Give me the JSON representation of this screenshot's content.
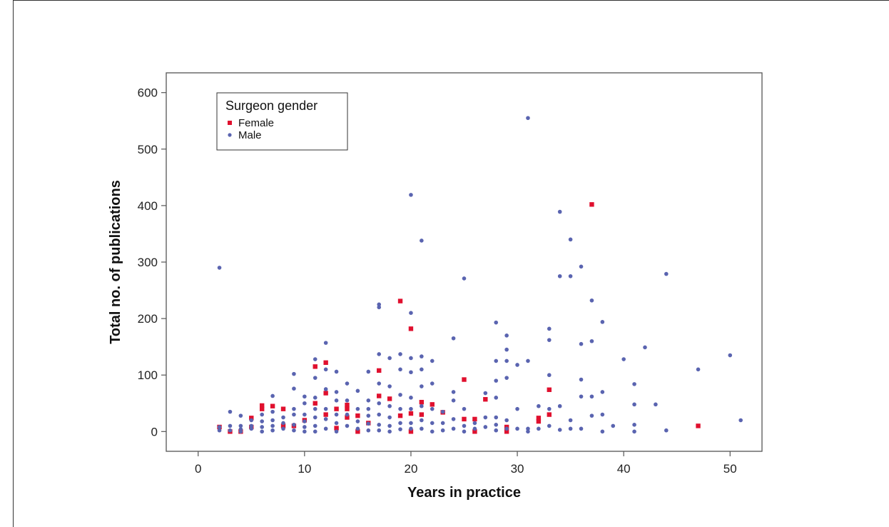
{
  "chart_data": {
    "type": "scatter",
    "title": "",
    "xlabel": "Years in practice",
    "ylabel": "Total no. of publications",
    "xlim": [
      -3,
      53
    ],
    "ylim": [
      -35,
      635
    ],
    "xticks": [
      0,
      10,
      20,
      30,
      40,
      50
    ],
    "yticks": [
      0,
      100,
      200,
      300,
      400,
      500,
      600
    ],
    "grid": false,
    "legend": {
      "title": "Surgeon gender",
      "placement": "top-left"
    },
    "series": [
      {
        "name": "Female",
        "color": "#e0102e",
        "marker": "square",
        "points": [
          [
            2,
            8
          ],
          [
            3,
            0
          ],
          [
            4,
            0
          ],
          [
            5,
            24
          ],
          [
            6,
            46
          ],
          [
            6,
            40
          ],
          [
            7,
            45
          ],
          [
            8,
            40
          ],
          [
            8,
            10
          ],
          [
            9,
            10
          ],
          [
            11,
            115
          ],
          [
            12,
            122
          ],
          [
            11,
            50
          ],
          [
            12,
            68
          ],
          [
            12,
            30
          ],
          [
            13,
            40
          ],
          [
            14,
            47
          ],
          [
            14,
            40
          ],
          [
            14,
            25
          ],
          [
            15,
            28
          ],
          [
            15,
            0
          ],
          [
            16,
            15
          ],
          [
            17,
            108
          ],
          [
            17,
            63
          ],
          [
            18,
            58
          ],
          [
            19,
            231
          ],
          [
            20,
            182
          ],
          [
            20,
            32
          ],
          [
            19,
            28
          ],
          [
            21,
            52
          ],
          [
            21,
            30
          ],
          [
            22,
            48
          ],
          [
            23,
            34
          ],
          [
            25,
            92
          ],
          [
            25,
            22
          ],
          [
            26,
            0
          ],
          [
            26,
            22
          ],
          [
            27,
            57
          ],
          [
            29,
            8
          ],
          [
            29,
            0
          ],
          [
            32,
            24
          ],
          [
            32,
            18
          ],
          [
            33,
            74
          ],
          [
            33,
            30
          ],
          [
            37,
            402
          ],
          [
            47,
            10
          ],
          [
            20,
            0
          ],
          [
            10,
            20
          ],
          [
            5,
            8
          ],
          [
            13,
            6
          ]
        ]
      },
      {
        "name": "Male",
        "color": "#5a64b0",
        "marker": "circle",
        "points": [
          [
            2,
            290
          ],
          [
            2,
            2
          ],
          [
            2,
            8
          ],
          [
            3,
            35
          ],
          [
            3,
            10
          ],
          [
            3,
            2
          ],
          [
            4,
            28
          ],
          [
            4,
            10
          ],
          [
            4,
            4
          ],
          [
            4,
            0
          ],
          [
            5,
            20
          ],
          [
            5,
            10
          ],
          [
            5,
            5
          ],
          [
            6,
            30
          ],
          [
            6,
            18
          ],
          [
            6,
            8
          ],
          [
            6,
            0
          ],
          [
            7,
            63
          ],
          [
            7,
            35
          ],
          [
            7,
            20
          ],
          [
            7,
            10
          ],
          [
            7,
            2
          ],
          [
            8,
            25
          ],
          [
            8,
            15
          ],
          [
            8,
            5
          ],
          [
            9,
            102
          ],
          [
            9,
            76
          ],
          [
            9,
            40
          ],
          [
            9,
            30
          ],
          [
            9,
            12
          ],
          [
            9,
            2
          ],
          [
            10,
            62
          ],
          [
            10,
            50
          ],
          [
            10,
            30
          ],
          [
            10,
            18
          ],
          [
            10,
            8
          ],
          [
            10,
            0
          ],
          [
            11,
            128
          ],
          [
            11,
            95
          ],
          [
            11,
            60
          ],
          [
            11,
            40
          ],
          [
            11,
            25
          ],
          [
            11,
            10
          ],
          [
            11,
            0
          ],
          [
            12,
            157
          ],
          [
            12,
            110
          ],
          [
            12,
            75
          ],
          [
            12,
            40
          ],
          [
            12,
            22
          ],
          [
            12,
            5
          ],
          [
            13,
            106
          ],
          [
            13,
            70
          ],
          [
            13,
            55
          ],
          [
            13,
            30
          ],
          [
            13,
            15
          ],
          [
            13,
            0
          ],
          [
            14,
            85
          ],
          [
            14,
            55
          ],
          [
            14,
            30
          ],
          [
            14,
            10
          ],
          [
            15,
            72
          ],
          [
            15,
            40
          ],
          [
            15,
            18
          ],
          [
            15,
            5
          ],
          [
            16,
            106
          ],
          [
            16,
            55
          ],
          [
            16,
            40
          ],
          [
            16,
            28
          ],
          [
            16,
            14
          ],
          [
            16,
            2
          ],
          [
            17,
            225
          ],
          [
            17,
            220
          ],
          [
            17,
            137
          ],
          [
            17,
            85
          ],
          [
            17,
            50
          ],
          [
            17,
            30
          ],
          [
            17,
            12
          ],
          [
            17,
            2
          ],
          [
            18,
            130
          ],
          [
            18,
            80
          ],
          [
            18,
            45
          ],
          [
            18,
            25
          ],
          [
            18,
            10
          ],
          [
            18,
            0
          ],
          [
            19,
            137
          ],
          [
            19,
            110
          ],
          [
            19,
            65
          ],
          [
            19,
            40
          ],
          [
            19,
            15
          ],
          [
            19,
            4
          ],
          [
            20,
            419
          ],
          [
            20,
            210
          ],
          [
            20,
            130
          ],
          [
            20,
            105
          ],
          [
            20,
            60
          ],
          [
            20,
            40
          ],
          [
            20,
            15
          ],
          [
            20,
            5
          ],
          [
            21,
            338
          ],
          [
            21,
            133
          ],
          [
            21,
            110
          ],
          [
            21,
            80
          ],
          [
            21,
            45
          ],
          [
            21,
            20
          ],
          [
            21,
            5
          ],
          [
            22,
            125
          ],
          [
            22,
            85
          ],
          [
            22,
            40
          ],
          [
            22,
            15
          ],
          [
            22,
            0
          ],
          [
            23,
            35
          ],
          [
            23,
            15
          ],
          [
            23,
            2
          ],
          [
            24,
            165
          ],
          [
            24,
            70
          ],
          [
            24,
            55
          ],
          [
            24,
            22
          ],
          [
            24,
            5
          ],
          [
            25,
            271
          ],
          [
            25,
            40
          ],
          [
            25,
            10
          ],
          [
            25,
            0
          ],
          [
            26,
            15
          ],
          [
            26,
            5
          ],
          [
            27,
            68
          ],
          [
            27,
            25
          ],
          [
            27,
            8
          ],
          [
            28,
            193
          ],
          [
            28,
            125
          ],
          [
            28,
            90
          ],
          [
            28,
            60
          ],
          [
            28,
            25
          ],
          [
            28,
            12
          ],
          [
            28,
            2
          ],
          [
            29,
            170
          ],
          [
            29,
            145
          ],
          [
            29,
            125
          ],
          [
            29,
            95
          ],
          [
            29,
            20
          ],
          [
            29,
            5
          ],
          [
            30,
            118
          ],
          [
            30,
            40
          ],
          [
            30,
            5
          ],
          [
            31,
            555
          ],
          [
            31,
            125
          ],
          [
            31,
            5
          ],
          [
            31,
            0
          ],
          [
            32,
            45
          ],
          [
            32,
            5
          ],
          [
            33,
            182
          ],
          [
            33,
            162
          ],
          [
            33,
            100
          ],
          [
            33,
            40
          ],
          [
            33,
            10
          ],
          [
            34,
            389
          ],
          [
            34,
            275
          ],
          [
            34,
            45
          ],
          [
            34,
            3
          ],
          [
            35,
            340
          ],
          [
            35,
            275
          ],
          [
            35,
            20
          ],
          [
            35,
            5
          ],
          [
            36,
            292
          ],
          [
            36,
            155
          ],
          [
            36,
            92
          ],
          [
            36,
            62
          ],
          [
            36,
            5
          ],
          [
            37,
            232
          ],
          [
            37,
            160
          ],
          [
            37,
            62
          ],
          [
            37,
            28
          ],
          [
            38,
            194
          ],
          [
            38,
            70
          ],
          [
            38,
            30
          ],
          [
            38,
            0
          ],
          [
            39,
            10
          ],
          [
            40,
            128
          ],
          [
            41,
            84
          ],
          [
            41,
            48
          ],
          [
            41,
            12
          ],
          [
            41,
            0
          ],
          [
            42,
            149
          ],
          [
            43,
            48
          ],
          [
            44,
            279
          ],
          [
            44,
            2
          ],
          [
            47,
            110
          ],
          [
            50,
            135
          ],
          [
            51,
            20
          ]
        ]
      }
    ]
  }
}
